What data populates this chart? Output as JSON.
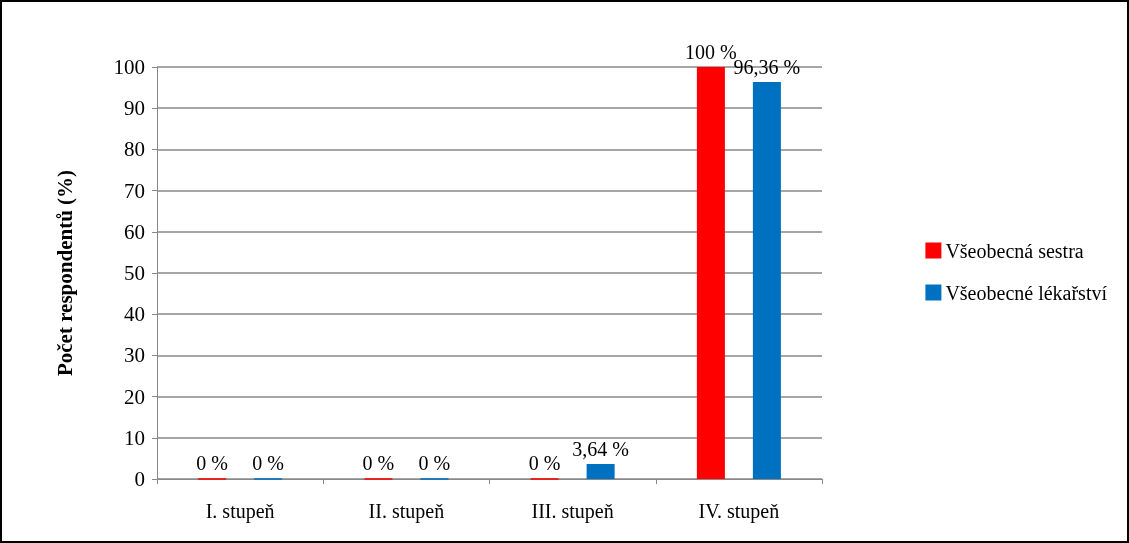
{
  "chart_data": {
    "type": "bar",
    "ylabel": "Počet respondentů (%)",
    "categories": [
      "I. stupeň",
      "II. stupeň",
      "III. stupeň",
      "IV. stupeň"
    ],
    "series": [
      {
        "name": "Všeobecná sestra",
        "color": "#ff0000",
        "values": [
          0,
          0,
          0,
          100
        ],
        "value_labels": [
          "0 %",
          "0 %",
          "0 %",
          "100 %"
        ]
      },
      {
        "name": "Všeobecné lékařství",
        "color": "#0070c0",
        "values": [
          0,
          0,
          3.64,
          96.36
        ],
        "value_labels": [
          "0 %",
          "0 %",
          "3,64 %",
          "96,36 %"
        ]
      }
    ],
    "ylim": [
      0,
      100
    ],
    "yticks": [
      0,
      10,
      20,
      30,
      40,
      50,
      60,
      70,
      80,
      90,
      100
    ],
    "grid": "y",
    "legend": "right"
  }
}
